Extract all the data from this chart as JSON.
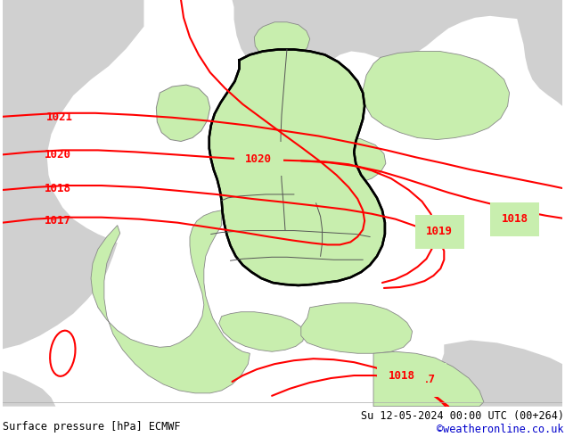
{
  "title_left": "Surface pressure [hPa] ECMWF",
  "title_right": "Su 12-05-2024 00:00 UTC (00+264)",
  "credit": "©weatheronline.co.uk",
  "bg_green": "#c8eeae",
  "bg_gray": "#d0d0d0",
  "contour_color": "#ff0000",
  "border_black": "#000000",
  "border_gray": "#888888",
  "footer_fontsize": 8.5,
  "credit_color": "#0000cc",
  "contour_lw": 1.5,
  "figsize": [
    6.34,
    4.9
  ],
  "dpi": 100
}
